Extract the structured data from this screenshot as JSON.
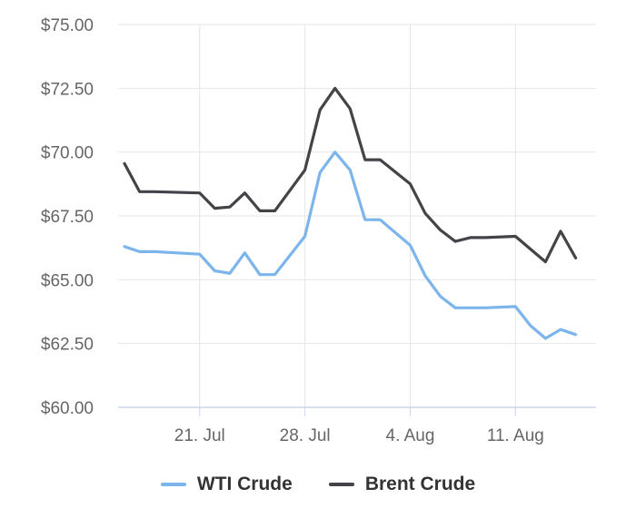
{
  "chart_data": {
    "type": "line",
    "title": "",
    "xlabel": "",
    "ylabel": "",
    "ylim": [
      60,
      75
    ],
    "yticks": [
      "$60.00",
      "$62.50",
      "$65.00",
      "$67.50",
      "$70.00",
      "$72.50",
      "$75.00"
    ],
    "yticks_values": [
      60,
      62.5,
      65,
      67.5,
      70,
      72.5,
      75
    ],
    "xlim": [
      "2025-07-16",
      "2025-08-14"
    ],
    "xticks": [
      {
        "date": "2025-07-21",
        "label": "21. Jul"
      },
      {
        "date": "2025-07-28",
        "label": "28. Jul"
      },
      {
        "date": "2025-08-04",
        "label": "4. Aug"
      },
      {
        "date": "2025-08-11",
        "label": "11. Aug"
      }
    ],
    "grid": true,
    "legend_position": "bottom",
    "series": [
      {
        "name": "WTI Crude",
        "color": "#7cb5ec",
        "points": [
          [
            "2025-07-16",
            66.3
          ],
          [
            "2025-07-17",
            66.1
          ],
          [
            "2025-07-18",
            66.1
          ],
          [
            "2025-07-21",
            66.0
          ],
          [
            "2025-07-22",
            65.35
          ],
          [
            "2025-07-23",
            65.25
          ],
          [
            "2025-07-24",
            66.05
          ],
          [
            "2025-07-25",
            65.2
          ],
          [
            "2025-07-26",
            65.2
          ],
          [
            "2025-07-28",
            66.7
          ],
          [
            "2025-07-29",
            69.2
          ],
          [
            "2025-07-30",
            70.0
          ],
          [
            "2025-07-31",
            69.3
          ],
          [
            "2025-08-01",
            67.35
          ],
          [
            "2025-08-02",
            67.35
          ],
          [
            "2025-08-04",
            66.35
          ],
          [
            "2025-08-05",
            65.15
          ],
          [
            "2025-08-06",
            64.35
          ],
          [
            "2025-08-07",
            63.9
          ],
          [
            "2025-08-08",
            63.9
          ],
          [
            "2025-08-09",
            63.9
          ],
          [
            "2025-08-11",
            63.95
          ],
          [
            "2025-08-12",
            63.2
          ],
          [
            "2025-08-13",
            62.7
          ],
          [
            "2025-08-14",
            63.05
          ],
          [
            "2025-08-15",
            62.85
          ]
        ]
      },
      {
        "name": "Brent Crude",
        "color": "#434348",
        "points": [
          [
            "2025-07-16",
            69.55
          ],
          [
            "2025-07-17",
            68.45
          ],
          [
            "2025-07-18",
            68.45
          ],
          [
            "2025-07-21",
            68.4
          ],
          [
            "2025-07-22",
            67.8
          ],
          [
            "2025-07-23",
            67.85
          ],
          [
            "2025-07-24",
            68.4
          ],
          [
            "2025-07-25",
            67.7
          ],
          [
            "2025-07-26",
            67.7
          ],
          [
            "2025-07-28",
            69.3
          ],
          [
            "2025-07-29",
            71.65
          ],
          [
            "2025-07-30",
            72.5
          ],
          [
            "2025-07-31",
            71.7
          ],
          [
            "2025-08-01",
            69.7
          ],
          [
            "2025-08-02",
            69.7
          ],
          [
            "2025-08-04",
            68.75
          ],
          [
            "2025-08-05",
            67.6
          ],
          [
            "2025-08-06",
            66.95
          ],
          [
            "2025-08-07",
            66.5
          ],
          [
            "2025-08-08",
            66.65
          ],
          [
            "2025-08-09",
            66.65
          ],
          [
            "2025-08-11",
            66.7
          ],
          [
            "2025-08-12",
            66.2
          ],
          [
            "2025-08-13",
            65.7
          ],
          [
            "2025-08-14",
            66.9
          ],
          [
            "2025-08-15",
            65.85
          ]
        ]
      }
    ]
  }
}
